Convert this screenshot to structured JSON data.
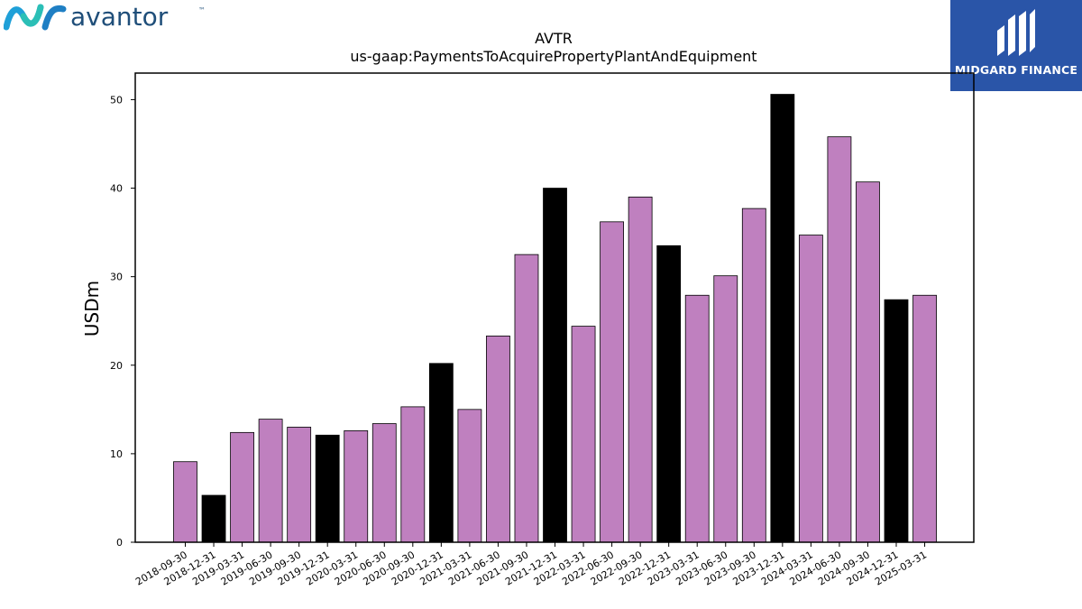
{
  "logos": {
    "left_text": "avantor",
    "left_tm": "™",
    "left_color": "#1f4e79",
    "right_text": "MIDGARD FINANCE",
    "right_bg": "#2a55a8"
  },
  "chart_data": {
    "type": "bar",
    "title": "AVTR",
    "subtitle": "us-gaap:PaymentsToAcquirePropertyPlantAndEquipment",
    "ylabel": "USDm",
    "xlabel": "",
    "ylim": [
      0,
      53
    ],
    "yticks": [
      0,
      10,
      20,
      30,
      40,
      50
    ],
    "grid": false,
    "legend": "none",
    "colors": {
      "quarter": "#bf80bf",
      "year_end": "#000000",
      "edge": "#000000"
    },
    "categories": [
      "2018-09-30",
      "2018-12-31",
      "2019-03-31",
      "2019-06-30",
      "2019-09-30",
      "2019-12-31",
      "2020-03-31",
      "2020-06-30",
      "2020-09-30",
      "2020-12-31",
      "2021-03-31",
      "2021-06-30",
      "2021-09-30",
      "2021-12-31",
      "2022-03-31",
      "2022-06-30",
      "2022-09-30",
      "2022-12-31",
      "2023-03-31",
      "2023-06-30",
      "2023-09-30",
      "2023-12-31",
      "2024-03-31",
      "2024-06-30",
      "2024-09-30",
      "2024-12-31",
      "2025-03-31"
    ],
    "values": [
      9.1,
      5.3,
      12.4,
      13.9,
      13.0,
      12.1,
      12.6,
      13.4,
      15.3,
      20.2,
      15.0,
      23.3,
      32.5,
      40.0,
      24.4,
      36.2,
      39.0,
      33.5,
      27.9,
      30.1,
      37.7,
      50.6,
      34.7,
      45.8,
      40.7,
      27.4,
      27.9
    ]
  }
}
